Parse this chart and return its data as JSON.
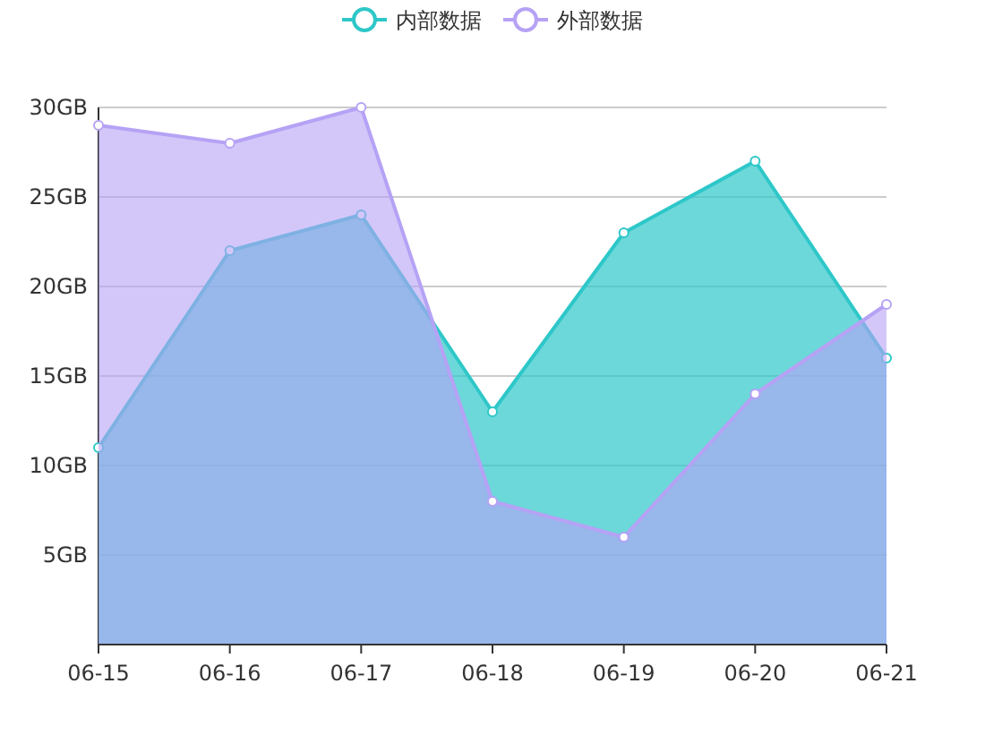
{
  "chart_data": {
    "type": "area",
    "categories": [
      "06-15",
      "06-16",
      "06-17",
      "06-18",
      "06-19",
      "06-20",
      "06-21"
    ],
    "series": [
      {
        "name": "内部数据",
        "color": "#2ec7c9",
        "values": [
          11,
          22,
          24,
          13,
          23,
          27,
          16
        ]
      },
      {
        "name": "外部数据",
        "color": "#b6a2f5",
        "values": [
          29,
          28,
          30,
          8,
          6,
          14,
          19
        ]
      }
    ],
    "ylim": [
      0,
      30
    ],
    "yticks": [
      {
        "value": 0,
        "label": null
      },
      {
        "value": 5,
        "label": "5GB"
      },
      {
        "value": 10,
        "label": "10GB"
      },
      {
        "value": 15,
        "label": "15GB"
      },
      {
        "value": 20,
        "label": "20GB"
      },
      {
        "value": 25,
        "label": "25GB"
      },
      {
        "value": 30,
        "label": "30GB"
      }
    ],
    "grid": "y",
    "legend": "top",
    "marker": "circle",
    "line_style": "solid"
  }
}
